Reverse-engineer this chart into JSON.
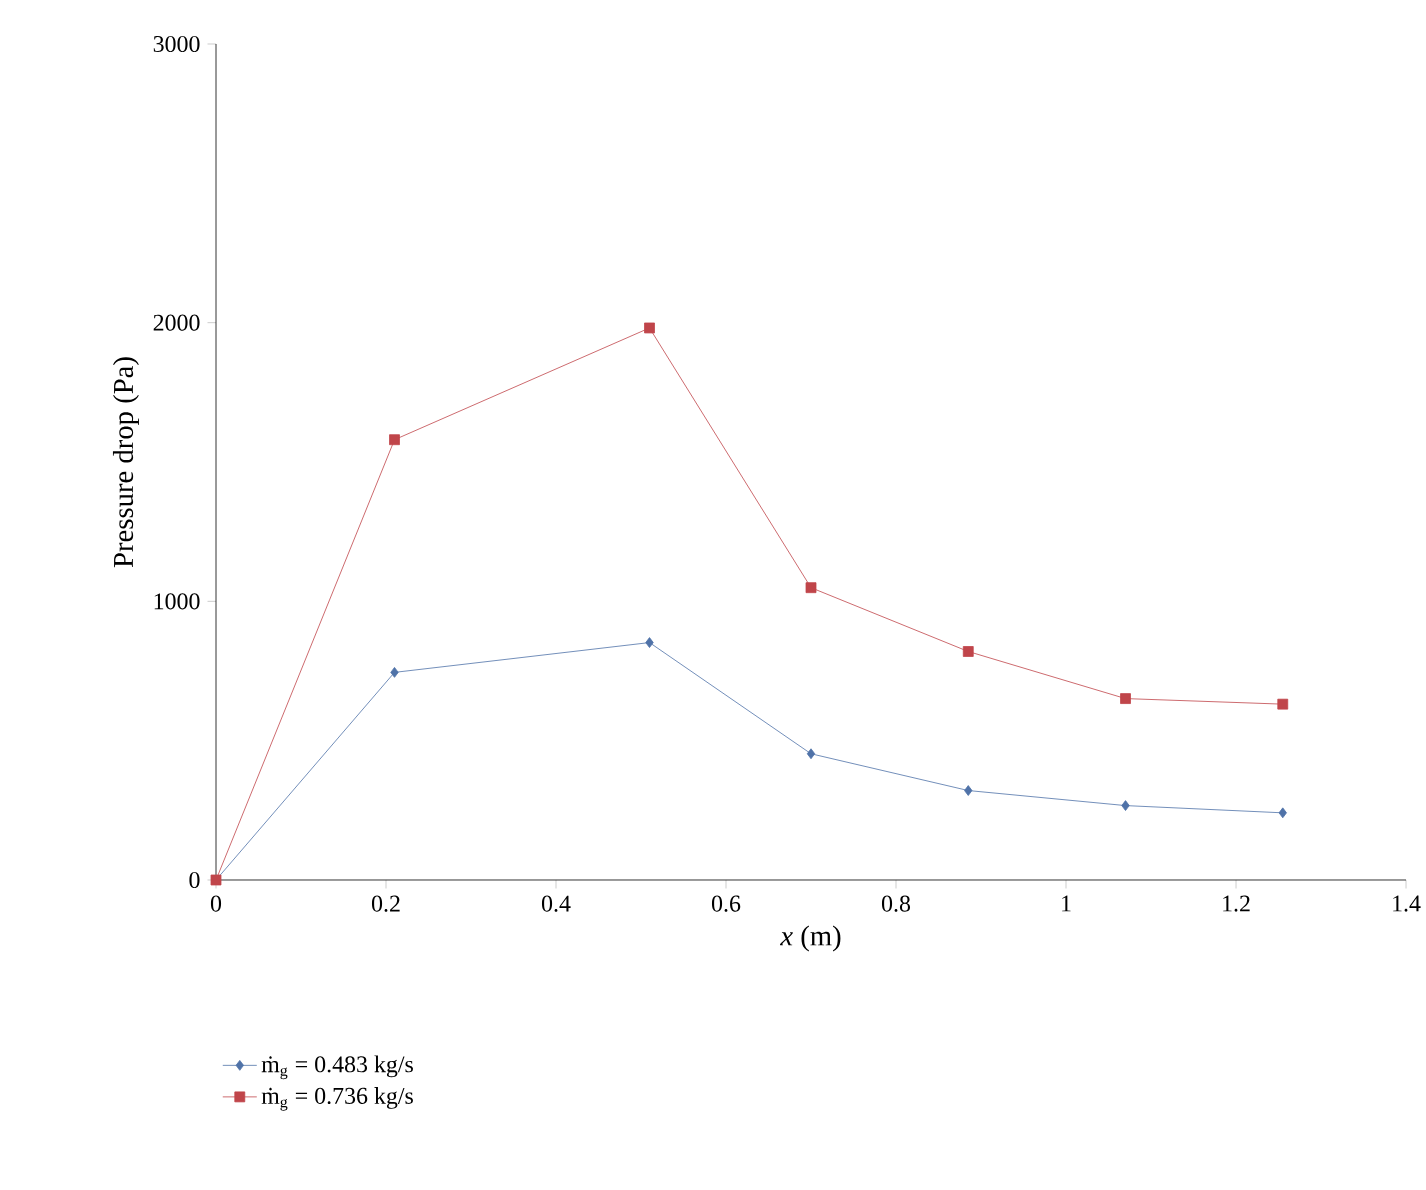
{
  "chart_data": {
    "type": "line",
    "xlabel": "*x* (m)",
    "ylabel": "Pressure drop (Pa)",
    "x": [
      0,
      0.21,
      0.51,
      0.7,
      0.885,
      1.07,
      1.255
    ],
    "series": [
      {
        "name": "ṁ$_{g}$ = 0.483 kg/s",
        "color": "#4f72a8",
        "marker": "diamond",
        "values": [
          0,
          745,
          852,
          453,
          321,
          267,
          241
        ]
      },
      {
        "name": "ṁ$_{g}$ = 0.736 kg/s",
        "color": "#c0454a",
        "marker": "square",
        "values": [
          0,
          1580,
          1981,
          1049,
          820,
          651,
          631
        ]
      }
    ],
    "xlim": [
      0,
      1.4
    ],
    "xticks": [
      0,
      0.2,
      0.4,
      0.6,
      0.8,
      1,
      1.2,
      1.4
    ],
    "ylim": [
      0,
      3000
    ],
    "yticks": [
      0,
      1000,
      2000,
      3000
    ],
    "grid": false,
    "legend": "bottom left",
    "line_style": "solid"
  }
}
